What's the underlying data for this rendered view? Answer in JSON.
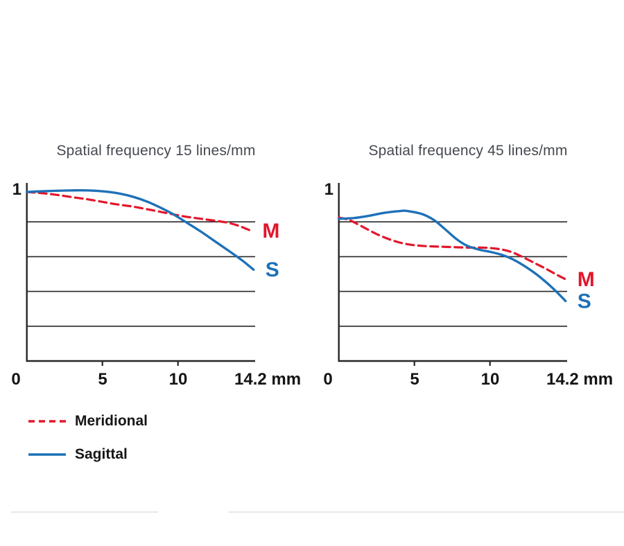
{
  "colors": {
    "meridional": "#e2172b",
    "sagittal": "#1d71b8",
    "title_text": "#45494f",
    "axis_text": "#141414",
    "grid": "#262626",
    "divider": "#e7e7e7",
    "background": "#ffffff"
  },
  "legend": {
    "items": [
      {
        "label": "Meridional",
        "style": "dashed",
        "color": "#e2172b"
      },
      {
        "label": "Sagittal",
        "style": "solid",
        "color": "#1d71b8"
      }
    ]
  },
  "chart_data": [
    {
      "type": "line",
      "title": "Spatial frequency 15 lines/mm",
      "ylabel_top": "1",
      "x_tick_labels": [
        "0",
        "5",
        "10"
      ],
      "x_ticks_mm": [
        0,
        5,
        10
      ],
      "x_end_label": "14.2 mm",
      "x_max_mm": 14.2,
      "xlim": [
        0,
        15.1
      ],
      "ylim": [
        0,
        1
      ],
      "y_gridlines": [
        0.2,
        0.4,
        0.6,
        0.8
      ],
      "grid": true,
      "legend_position": "below-left",
      "series": [
        {
          "name": "Meridional",
          "label": "M",
          "line_style": "dashed",
          "color": "#e2172b",
          "points": [
            [
              0,
              0.972
            ],
            [
              1,
              0.965
            ],
            [
              2,
              0.955
            ],
            [
              3,
              0.942
            ],
            [
              4,
              0.93
            ],
            [
              5,
              0.915
            ],
            [
              6,
              0.9
            ],
            [
              7,
              0.888
            ],
            [
              8,
              0.872
            ],
            [
              9,
              0.855
            ],
            [
              9.7,
              0.843
            ],
            [
              10.5,
              0.83
            ],
            [
              11.5,
              0.818
            ],
            [
              12.5,
              0.806
            ],
            [
              13.3,
              0.795
            ],
            [
              14,
              0.778
            ],
            [
              14.8,
              0.75
            ]
          ]
        },
        {
          "name": "Sagittal",
          "label": "S",
          "line_style": "solid",
          "color": "#1d71b8",
          "points": [
            [
              0,
              0.972
            ],
            [
              1,
              0.976
            ],
            [
              2,
              0.979
            ],
            [
              3,
              0.981
            ],
            [
              4,
              0.981
            ],
            [
              5,
              0.976
            ],
            [
              6,
              0.965
            ],
            [
              7,
              0.945
            ],
            [
              8,
              0.915
            ],
            [
              9,
              0.875
            ],
            [
              9.7,
              0.843
            ],
            [
              10.5,
              0.8
            ],
            [
              11.5,
              0.745
            ],
            [
              12.5,
              0.685
            ],
            [
              13.5,
              0.625
            ],
            [
              14.3,
              0.575
            ],
            [
              15,
              0.525
            ]
          ]
        }
      ]
    },
    {
      "type": "line",
      "title": "Spatial frequency 45 lines/mm",
      "ylabel_top": "1",
      "x_tick_labels": [
        "0",
        "5",
        "10"
      ],
      "x_ticks_mm": [
        0,
        5,
        10
      ],
      "x_end_label": "14.2 mm",
      "x_max_mm": 14.2,
      "xlim": [
        0,
        15.1
      ],
      "ylim": [
        0,
        1
      ],
      "y_gridlines": [
        0.2,
        0.4,
        0.6,
        0.8
      ],
      "grid": true,
      "legend_position": "below-left",
      "series": [
        {
          "name": "Meridional",
          "label": "M",
          "line_style": "dashed",
          "color": "#e2172b",
          "points": [
            [
              0,
              0.825
            ],
            [
              0.7,
              0.81
            ],
            [
              1.5,
              0.775
            ],
            [
              2.5,
              0.73
            ],
            [
              3.5,
              0.695
            ],
            [
              4.5,
              0.672
            ],
            [
              5.5,
              0.662
            ],
            [
              6.5,
              0.658
            ],
            [
              7.5,
              0.655
            ],
            [
              8.5,
              0.652
            ],
            [
              9.5,
              0.652
            ],
            [
              10.5,
              0.645
            ],
            [
              11.3,
              0.63
            ],
            [
              12,
              0.605
            ],
            [
              12.8,
              0.57
            ],
            [
              13.6,
              0.535
            ],
            [
              14.4,
              0.497
            ],
            [
              15,
              0.47
            ]
          ]
        },
        {
          "name": "Sagittal",
          "label": "S",
          "line_style": "solid",
          "color": "#1d71b8",
          "points": [
            [
              0,
              0.818
            ],
            [
              1,
              0.822
            ],
            [
              2,
              0.835
            ],
            [
              3,
              0.852
            ],
            [
              4,
              0.862
            ],
            [
              4.5,
              0.863
            ],
            [
              5.5,
              0.845
            ],
            [
              6.3,
              0.81
            ],
            [
              7,
              0.76
            ],
            [
              7.8,
              0.7
            ],
            [
              8.5,
              0.662
            ],
            [
              9.3,
              0.64
            ],
            [
              10,
              0.628
            ],
            [
              10.8,
              0.61
            ],
            [
              11.5,
              0.585
            ],
            [
              12.3,
              0.545
            ],
            [
              13.2,
              0.49
            ],
            [
              14.2,
              0.415
            ],
            [
              15,
              0.345
            ]
          ]
        }
      ]
    }
  ]
}
